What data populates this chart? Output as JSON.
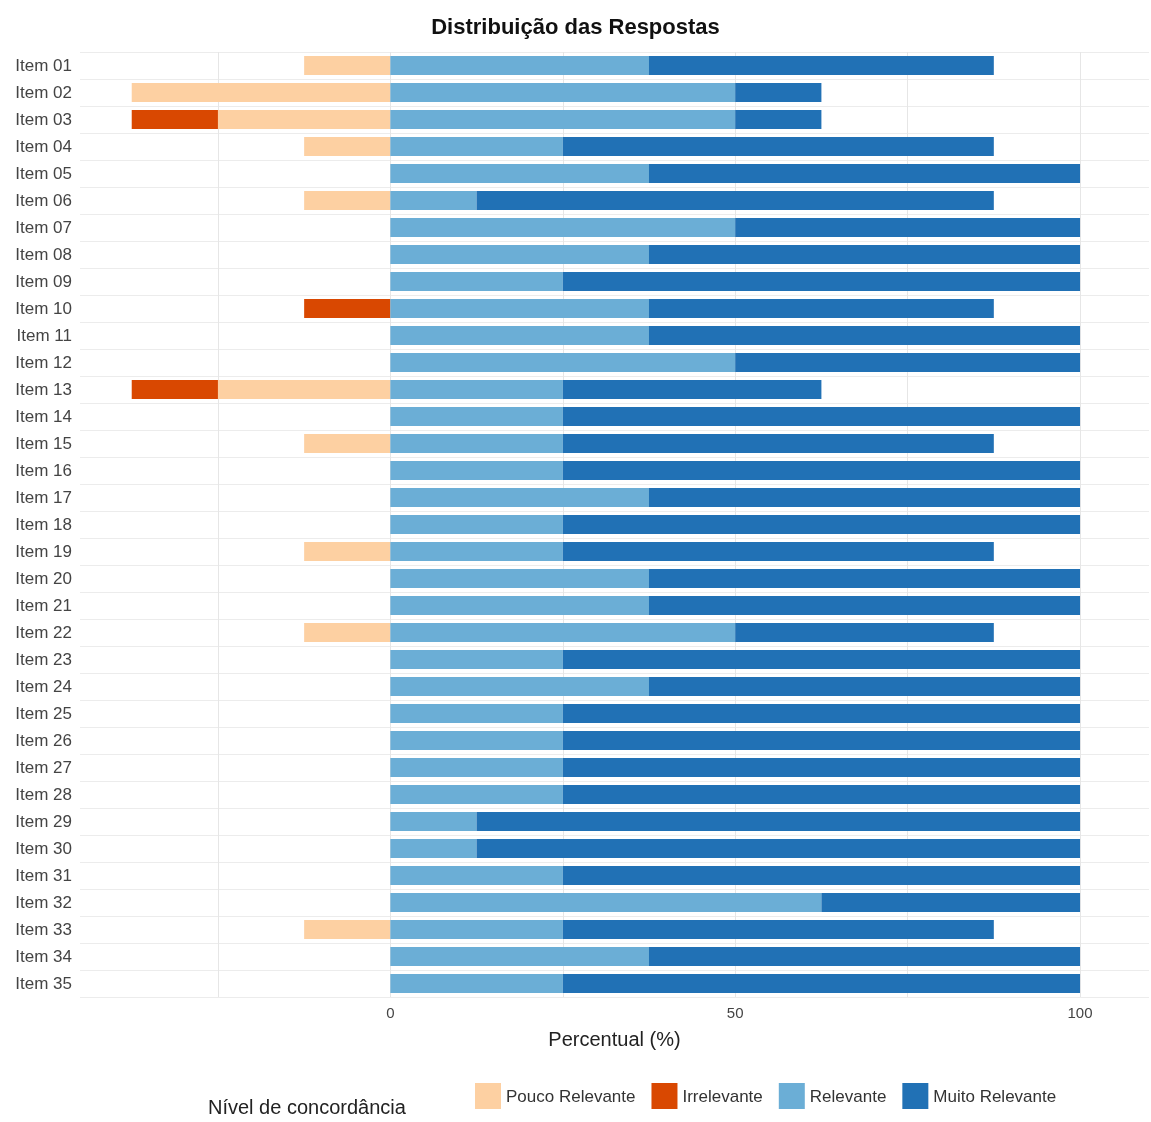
{
  "chart_data": {
    "type": "bar",
    "orientation": "horizontal",
    "stacked": true,
    "title": "Distribuição das Respostas",
    "xlabel": "Percentual (%)",
    "legend_title": "Nível de concordância",
    "legend": "bottom",
    "grid": true,
    "categories": [
      "Item 01",
      "Item 02",
      "Item 03",
      "Item 04",
      "Item 05",
      "Item 06",
      "Item 07",
      "Item 08",
      "Item 09",
      "Item 10",
      "Item 11",
      "Item 12",
      "Item 13",
      "Item 14",
      "Item 15",
      "Item 16",
      "Item 17",
      "Item 18",
      "Item 19",
      "Item 20",
      "Item 21",
      "Item 22",
      "Item 23",
      "Item 24",
      "Item 25",
      "Item 26",
      "Item 27",
      "Item 28",
      "Item 29",
      "Item 30",
      "Item 31",
      "Item 32",
      "Item 33",
      "Item 34",
      "Item 35"
    ],
    "xlim": [
      -45,
      110
    ],
    "xticks": [
      {
        "value": -25,
        "label": null
      },
      0,
      {
        "value": 25,
        "label": null
      },
      50,
      {
        "value": 75,
        "label": null
      },
      100
    ],
    "series": [
      {
        "name": "Pouco Relevante",
        "color": "#fdd0a2",
        "values": [
          -12.5,
          -37.5,
          -25,
          -12.5,
          null,
          -12.5,
          null,
          null,
          null,
          null,
          null,
          null,
          -25,
          null,
          -12.5,
          null,
          null,
          null,
          -12.5,
          null,
          null,
          -12.5,
          null,
          null,
          null,
          null,
          null,
          null,
          null,
          null,
          null,
          null,
          -12.5,
          null,
          null
        ]
      },
      {
        "name": "Irrelevante",
        "color": "#d94801",
        "values": [
          null,
          null,
          -12.5,
          null,
          null,
          null,
          null,
          null,
          null,
          -12.5,
          null,
          null,
          -12.5,
          null,
          null,
          null,
          null,
          null,
          null,
          null,
          null,
          null,
          null,
          null,
          null,
          null,
          null,
          null,
          null,
          null,
          null,
          null,
          null,
          null,
          null
        ]
      },
      {
        "name": "Relevante",
        "color": "#6baed6",
        "values": [
          37.5,
          50,
          50,
          25,
          37.5,
          12.5,
          50,
          37.5,
          25,
          37.5,
          37.5,
          50,
          25,
          25,
          25,
          25,
          37.5,
          25,
          25,
          37.5,
          37.5,
          50,
          25,
          37.5,
          25,
          25,
          25,
          25,
          12.5,
          12.5,
          25,
          62.5,
          25,
          37.5,
          25
        ]
      },
      {
        "name": "Muito Relevante",
        "color": "#2171b5",
        "values": [
          50,
          12.5,
          12.5,
          62.5,
          62.5,
          75,
          50,
          62.5,
          75,
          50,
          62.5,
          50,
          37.5,
          75,
          62.5,
          75,
          62.5,
          75,
          62.5,
          62.5,
          62.5,
          37.5,
          75,
          62.5,
          75,
          75,
          75,
          75,
          87.5,
          87.5,
          75,
          37.5,
          62.5,
          62.5,
          75
        ]
      }
    ]
  }
}
